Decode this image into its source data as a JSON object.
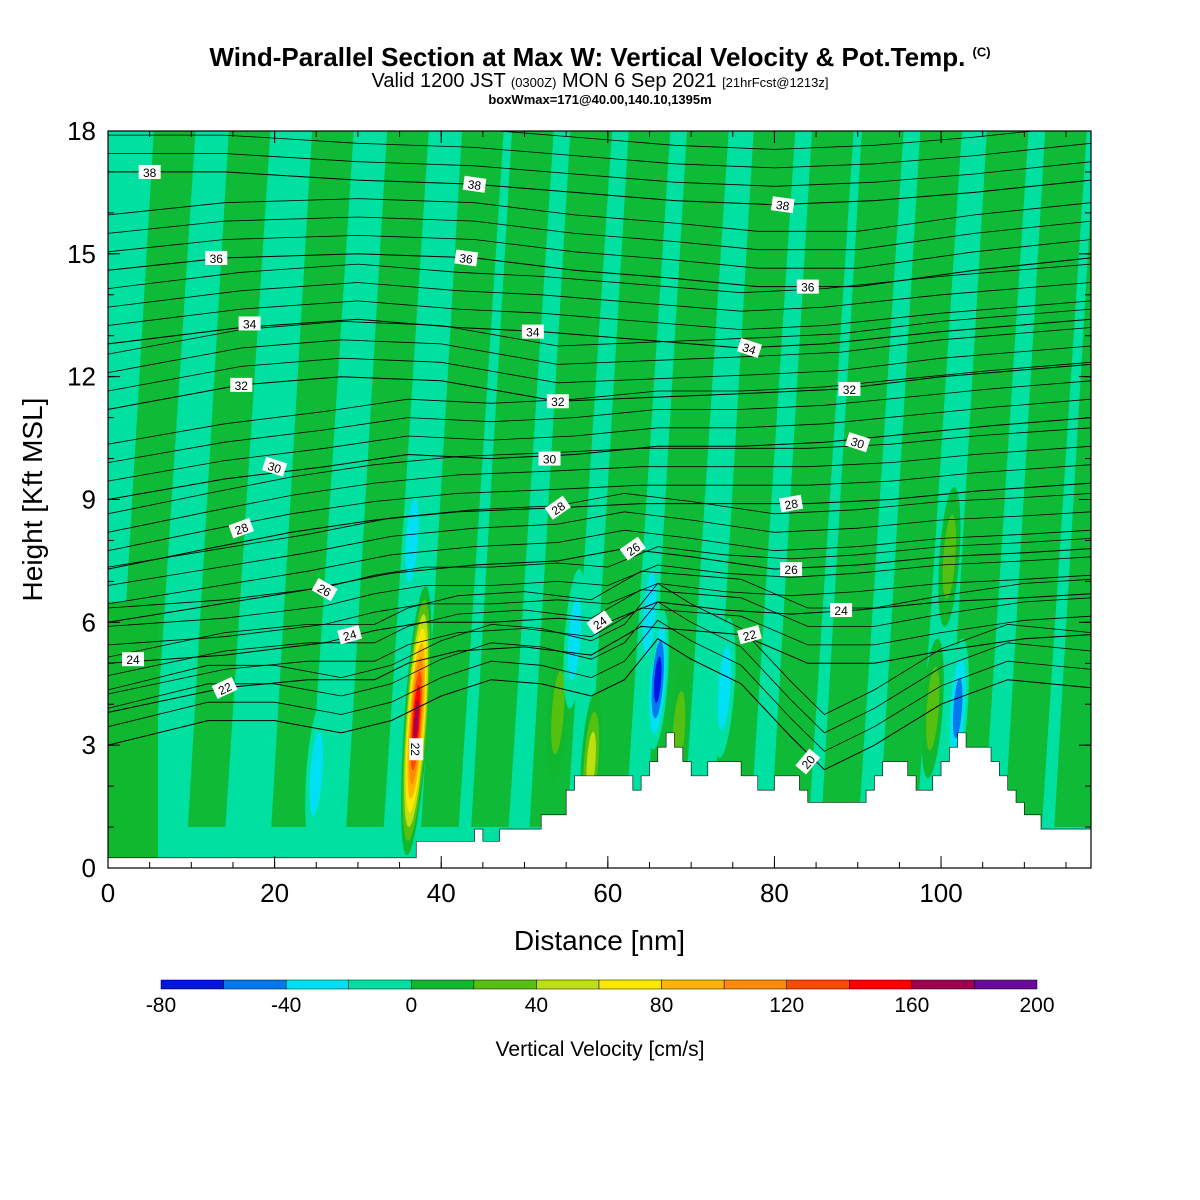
{
  "title": {
    "main": "Wind-Parallel Section at Max W: Vertical Velocity & Pot.Temp.",
    "copyright": "(C)",
    "valid_prefix": "Valid 1200 JST",
    "valid_z": "(0300Z)",
    "valid_date": "MON 6 Sep 2021",
    "forecast": "[21hrFcst@1213z]",
    "box_info": "boxWmax=171@40.00,140.10,1395m"
  },
  "chart_data": {
    "type": "heatmap",
    "xlabel": "Distance [nm]",
    "ylabel": "Height [Kft MSL]",
    "xlim": [
      0,
      118
    ],
    "ylim": [
      0,
      18
    ],
    "x_ticks": [
      0,
      20,
      40,
      60,
      80,
      100
    ],
    "y_ticks": [
      0,
      3,
      6,
      9,
      12,
      15,
      18
    ],
    "colorbar": {
      "label": "Vertical Velocity [cm/s]",
      "levels": [
        -80,
        -60,
        -40,
        -20,
        0,
        20,
        40,
        60,
        80,
        100,
        120,
        140,
        160,
        180,
        200
      ],
      "tick_labels": [
        -80,
        -40,
        0,
        40,
        80,
        120,
        160,
        200
      ],
      "colors": [
        "#0014e6",
        "#0078f0",
        "#00e0f5",
        "#00e0a0",
        "#10b830",
        "#55c010",
        "#bfe010",
        "#ffe800",
        "#ffb400",
        "#ff8c00",
        "#ff4800",
        "#ff0000",
        "#a00050",
        "#6a0a9a"
      ]
    },
    "background_color": "#00e0a0",
    "updraft_color": "#10b830",
    "terrain": {
      "x": [
        0,
        36,
        37,
        41,
        44,
        45,
        47,
        51,
        52,
        55,
        56,
        57,
        58,
        59,
        63,
        64,
        65,
        66,
        67,
        68,
        69,
        70,
        72,
        73,
        76,
        77,
        78,
        79,
        80,
        81,
        83,
        84,
        91,
        92,
        93,
        95,
        96,
        97,
        98,
        99,
        100,
        101,
        102,
        103,
        105,
        106,
        107,
        108,
        109,
        110,
        111,
        112,
        113,
        115,
        118
      ],
      "height": [
        0.25,
        0.25,
        0.65,
        0.65,
        0.95,
        0.65,
        0.95,
        0.95,
        1.3,
        1.9,
        2.25,
        2.25,
        2.25,
        2.25,
        1.9,
        2.25,
        2.6,
        2.95,
        3.3,
        2.95,
        2.6,
        2.25,
        2.6,
        2.6,
        2.25,
        2.25,
        1.9,
        1.9,
        2.25,
        2.25,
        1.9,
        1.6,
        1.9,
        2.25,
        2.6,
        2.6,
        2.25,
        1.9,
        1.9,
        2.25,
        2.6,
        2.95,
        3.3,
        2.95,
        2.95,
        2.6,
        2.25,
        1.9,
        1.6,
        1.3,
        1.3,
        0.95,
        0.95,
        0.95,
        0.95
      ]
    },
    "w_features": [
      {
        "x": 37,
        "z": 3.6,
        "peak": 171
      },
      {
        "x": 36.5,
        "z": 8.0,
        "peak": -30
      },
      {
        "x": 66,
        "z": 4.6,
        "peak": -80
      },
      {
        "x": 65,
        "z": 6.2,
        "peak": -30
      },
      {
        "x": 74,
        "z": 4.4,
        "peak": -28
      },
      {
        "x": 102,
        "z": 3.9,
        "peak": -60
      },
      {
        "x": 101,
        "z": 7.6,
        "peak": 30
      },
      {
        "x": 54,
        "z": 3.8,
        "peak": 28
      },
      {
        "x": 58,
        "z": 2.6,
        "peak": 45
      },
      {
        "x": 68.5,
        "z": 3.3,
        "peak": 40
      },
      {
        "x": 99,
        "z": 3.9,
        "peak": 30
      },
      {
        "x": 25,
        "z": 2.3,
        "peak": -25
      },
      {
        "x": 56,
        "z": 5.6,
        "peak": -22
      }
    ],
    "theta_contours": [
      {
        "value": 20,
        "points": [
          [
            0,
            3.0
          ],
          [
            12,
            3.6
          ],
          [
            20,
            3.6
          ],
          [
            28,
            3.3
          ],
          [
            34,
            3.6
          ],
          [
            40,
            4.2
          ],
          [
            46,
            4.6
          ],
          [
            52,
            4.5
          ],
          [
            58,
            4.2
          ],
          [
            62,
            4.6
          ],
          [
            66,
            5.6
          ],
          [
            70,
            5.1
          ],
          [
            76,
            4.5
          ],
          [
            82,
            3.2
          ],
          [
            86,
            2.4
          ],
          [
            92,
            3.0
          ],
          [
            100,
            4.0
          ],
          [
            108,
            4.6
          ],
          [
            118,
            4.4
          ]
        ]
      },
      {
        "value": 22,
        "points": [
          [
            0,
            3.8
          ],
          [
            14,
            4.4
          ],
          [
            24,
            4.6
          ],
          [
            32,
            4.6
          ],
          [
            36,
            5.0
          ],
          [
            42,
            5.3
          ],
          [
            50,
            5.4
          ],
          [
            58,
            5.2
          ],
          [
            64,
            5.9
          ],
          [
            70,
            5.8
          ],
          [
            76,
            5.7
          ],
          [
            84,
            5.0
          ],
          [
            92,
            5.0
          ],
          [
            100,
            5.3
          ],
          [
            110,
            5.6
          ],
          [
            118,
            5.7
          ]
        ]
      },
      {
        "value": 24,
        "points": [
          [
            0,
            5.0
          ],
          [
            14,
            5.2
          ],
          [
            26,
            5.5
          ],
          [
            32,
            5.8
          ],
          [
            38,
            6.0
          ],
          [
            46,
            6.0
          ],
          [
            54,
            6.1
          ],
          [
            60,
            6.0
          ],
          [
            66,
            6.5
          ],
          [
            74,
            6.3
          ],
          [
            82,
            6.2
          ],
          [
            90,
            6.3
          ],
          [
            100,
            6.5
          ],
          [
            110,
            6.6
          ],
          [
            118,
            6.7
          ]
        ]
      },
      {
        "value": 26,
        "points": [
          [
            0,
            6.0
          ],
          [
            12,
            6.4
          ],
          [
            24,
            6.8
          ],
          [
            34,
            7.2
          ],
          [
            44,
            7.4
          ],
          [
            54,
            7.5
          ],
          [
            62,
            7.8
          ],
          [
            70,
            7.6
          ],
          [
            80,
            7.3
          ],
          [
            90,
            7.4
          ],
          [
            100,
            7.6
          ],
          [
            110,
            7.7
          ],
          [
            118,
            7.8
          ]
        ]
      },
      {
        "value": 28,
        "points": [
          [
            0,
            7.3
          ],
          [
            12,
            7.8
          ],
          [
            22,
            8.2
          ],
          [
            32,
            8.5
          ],
          [
            42,
            8.7
          ],
          [
            54,
            8.8
          ],
          [
            64,
            8.9
          ],
          [
            74,
            8.9
          ],
          [
            84,
            8.9
          ],
          [
            94,
            9.0
          ],
          [
            104,
            9.2
          ],
          [
            118,
            9.4
          ]
        ]
      },
      {
        "value": 30,
        "points": [
          [
            0,
            9.0
          ],
          [
            14,
            9.5
          ],
          [
            26,
            9.8
          ],
          [
            36,
            10.1
          ],
          [
            46,
            10.0
          ],
          [
            56,
            10.1
          ],
          [
            66,
            10.3
          ],
          [
            76,
            10.3
          ],
          [
            86,
            10.4
          ],
          [
            96,
            10.6
          ],
          [
            106,
            10.8
          ],
          [
            118,
            11.0
          ]
        ]
      },
      {
        "value": 32,
        "points": [
          [
            0,
            11.2
          ],
          [
            16,
            11.8
          ],
          [
            28,
            12.0
          ],
          [
            40,
            11.9
          ],
          [
            54,
            11.4
          ],
          [
            66,
            11.5
          ],
          [
            78,
            11.6
          ],
          [
            88,
            11.7
          ],
          [
            100,
            12.0
          ],
          [
            118,
            12.3
          ]
        ]
      },
      {
        "value": 34,
        "points": [
          [
            0,
            12.8
          ],
          [
            16,
            13.2
          ],
          [
            30,
            13.4
          ],
          [
            42,
            13.2
          ],
          [
            52,
            13.1
          ],
          [
            64,
            12.9
          ],
          [
            76,
            12.7
          ],
          [
            86,
            12.8
          ],
          [
            100,
            13.1
          ],
          [
            118,
            13.4
          ]
        ]
      },
      {
        "value": 36,
        "points": [
          [
            0,
            14.6
          ],
          [
            14,
            14.9
          ],
          [
            30,
            15.0
          ],
          [
            44,
            14.9
          ],
          [
            56,
            14.6
          ],
          [
            68,
            14.4
          ],
          [
            78,
            14.2
          ],
          [
            90,
            14.2
          ],
          [
            104,
            14.6
          ],
          [
            118,
            14.9
          ]
        ]
      },
      {
        "value": 38,
        "points": [
          [
            0,
            17.0
          ],
          [
            14,
            17.0
          ],
          [
            30,
            16.8
          ],
          [
            44,
            16.7
          ],
          [
            56,
            16.5
          ],
          [
            68,
            16.3
          ],
          [
            80,
            16.2
          ],
          [
            92,
            16.3
          ],
          [
            104,
            16.5
          ],
          [
            118,
            16.8
          ]
        ]
      }
    ],
    "contour_labels": [
      {
        "value": 38,
        "x": 5,
        "z": 17.0,
        "angle": 0
      },
      {
        "value": 38,
        "x": 44,
        "z": 16.7,
        "angle": 8
      },
      {
        "value": 38,
        "x": 81,
        "z": 16.2,
        "angle": 8
      },
      {
        "value": 36,
        "x": 13,
        "z": 14.9,
        "angle": 0
      },
      {
        "value": 36,
        "x": 43,
        "z": 14.9,
        "angle": 8
      },
      {
        "value": 36,
        "x": 84,
        "z": 14.2,
        "angle": 0
      },
      {
        "value": 34,
        "x": 17,
        "z": 13.3,
        "angle": 0
      },
      {
        "value": 34,
        "x": 51,
        "z": 13.1,
        "angle": 0
      },
      {
        "value": 34,
        "x": 77,
        "z": 12.7,
        "angle": 18
      },
      {
        "value": 32,
        "x": 16,
        "z": 11.8,
        "angle": 0
      },
      {
        "value": 32,
        "x": 54,
        "z": 11.4,
        "angle": 0
      },
      {
        "value": 32,
        "x": 89,
        "z": 11.7,
        "angle": 0
      },
      {
        "value": 30,
        "x": 20,
        "z": 9.8,
        "angle": 18
      },
      {
        "value": 30,
        "x": 53,
        "z": 10.0,
        "angle": 0
      },
      {
        "value": 30,
        "x": 90,
        "z": 10.4,
        "angle": 18
      },
      {
        "value": 28,
        "x": 16,
        "z": 8.3,
        "angle": -20
      },
      {
        "value": 28,
        "x": 54,
        "z": 8.8,
        "angle": -35
      },
      {
        "value": 28,
        "x": 82,
        "z": 8.9,
        "angle": -10
      },
      {
        "value": 26,
        "x": 26,
        "z": 6.8,
        "angle": 30
      },
      {
        "value": 26,
        "x": 63,
        "z": 7.8,
        "angle": -35
      },
      {
        "value": 26,
        "x": 82,
        "z": 7.3,
        "angle": 0
      },
      {
        "value": 24,
        "x": 3,
        "z": 5.1,
        "angle": 0
      },
      {
        "value": 24,
        "x": 29,
        "z": 5.7,
        "angle": -15
      },
      {
        "value": 24,
        "x": 59,
        "z": 6.0,
        "angle": -35
      },
      {
        "value": 24,
        "x": 88,
        "z": 6.3,
        "angle": 0
      },
      {
        "value": 22,
        "x": 14,
        "z": 4.4,
        "angle": -25
      },
      {
        "value": 22,
        "x": 77,
        "z": 5.7,
        "angle": -15
      },
      {
        "value": 22,
        "x": 37,
        "z": 2.9,
        "angle": 90
      },
      {
        "value": 20,
        "x": 84,
        "z": 2.6,
        "angle": -50
      }
    ]
  }
}
